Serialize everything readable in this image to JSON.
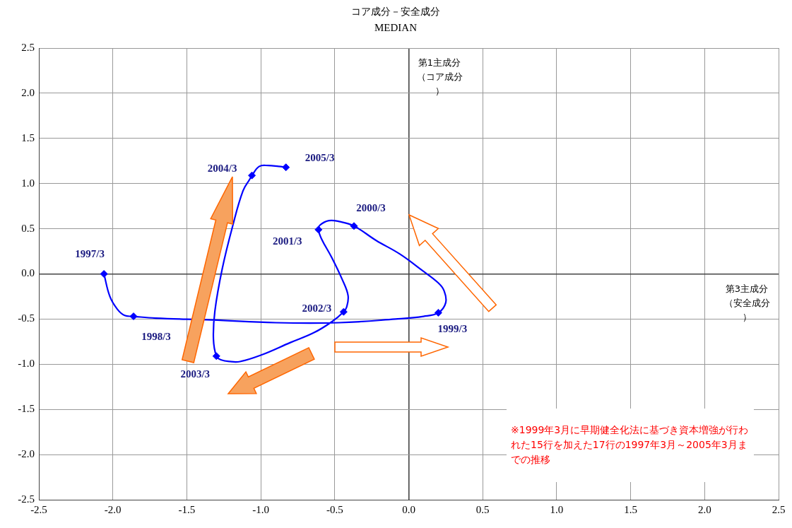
{
  "chart_data": {
    "type": "line",
    "title": "コア成分－安全成分",
    "subtitle": "MEDIAN",
    "xlabel": "第3主成分（安全成分）",
    "ylabel": "第1主成分（コア成分）",
    "xlim": [
      -2.5,
      2.5
    ],
    "ylim": [
      -2.5,
      2.5
    ],
    "xticks": [
      {
        "value": -2.5,
        "label": "-2.5"
      },
      {
        "value": -2,
        "label": "-2.0"
      },
      {
        "value": -1.5,
        "label": "-1.5"
      },
      {
        "value": -1,
        "label": "-1.0"
      },
      {
        "value": -0.5,
        "label": "-0.5"
      },
      {
        "value": 0,
        "label": "0.0"
      },
      {
        "value": 0.5,
        "label": "0.5"
      },
      {
        "value": 1,
        "label": "1.0"
      },
      {
        "value": 1.5,
        "label": "1.5"
      },
      {
        "value": 2,
        "label": "2.0"
      },
      {
        "value": 2.5,
        "label": "2.5"
      }
    ],
    "yticks": [
      {
        "value": -2.5,
        "label": "-2.5"
      },
      {
        "value": -2,
        "label": "-2.0"
      },
      {
        "value": -1.5,
        "label": "-1.5"
      },
      {
        "value": -1,
        "label": "-1.0"
      },
      {
        "value": -0.5,
        "label": "-0.5"
      },
      {
        "value": 0,
        "label": "0.0"
      },
      {
        "value": 0.5,
        "label": "0.5"
      },
      {
        "value": 1,
        "label": "1.0"
      },
      {
        "value": 1.5,
        "label": "1.5"
      },
      {
        "value": 2,
        "label": "2.0"
      },
      {
        "value": 2.5,
        "label": "2.5"
      }
    ],
    "grid": true,
    "legend": false,
    "series": [
      {
        "type": "line",
        "color": "#0000ff",
        "marker": "none",
        "line_style": "solid",
        "x": [
          -2.06,
          -2.02,
          -1.97,
          -1.92,
          -1.86,
          -1.71,
          -1.33,
          -0.9,
          -0.47,
          -0.09,
          0.1,
          0.2,
          0.25,
          0.24,
          0.2,
          0.09,
          -0.06,
          -0.22,
          -0.37,
          -0.47,
          -0.54,
          -0.6,
          -0.61,
          -0.59,
          -0.52,
          -0.45,
          -0.41,
          -0.42,
          -0.44,
          -0.52,
          -0.64,
          -0.8,
          -1.0,
          -1.14,
          -1.21,
          -1.27,
          -1.3,
          -1.32,
          -1.31,
          -1.26,
          -1.19,
          -1.12,
          -1.07,
          -1.06,
          -1.01,
          -0.95,
          -0.88,
          -0.83
        ],
        "values": [
          0.0,
          -0.25,
          -0.39,
          -0.46,
          -0.47,
          -0.49,
          -0.51,
          -0.54,
          -0.54,
          -0.5,
          -0.47,
          -0.43,
          -0.32,
          -0.19,
          -0.1,
          0.04,
          0.22,
          0.37,
          0.53,
          0.58,
          0.59,
          0.54,
          0.49,
          0.39,
          0.18,
          -0.06,
          -0.24,
          -0.37,
          -0.42,
          -0.53,
          -0.65,
          -0.76,
          -0.9,
          -0.97,
          -0.97,
          -0.95,
          -0.91,
          -0.72,
          -0.41,
          0.06,
          0.53,
          0.92,
          1.06,
          1.09,
          1.19,
          1.2,
          1.19,
          1.18
        ]
      },
      {
        "type": "scatter",
        "color": "#0000ff",
        "marker": "diamond",
        "x": [
          -2.06,
          -1.86,
          0.2,
          -0.37,
          -0.61,
          -0.44,
          -1.3,
          -1.06,
          -0.83
        ],
        "values": [
          0.0,
          -0.47,
          -0.43,
          0.53,
          0.49,
          -0.42,
          -0.91,
          1.09,
          1.18
        ]
      }
    ],
    "annotations": [
      {
        "text": "1997/3",
        "x": -2.06,
        "y": 0.0
      },
      {
        "text": "1998/3",
        "x": -1.86,
        "y": -0.47
      },
      {
        "text": "1999/3",
        "x": 0.2,
        "y": -0.43
      },
      {
        "text": "2000/3",
        "x": -0.37,
        "y": 0.53
      },
      {
        "text": "2001/3",
        "x": -0.61,
        "y": 0.49
      },
      {
        "text": "2002/3",
        "x": -0.44,
        "y": -0.42
      },
      {
        "text": "2003/3",
        "x": -1.3,
        "y": -0.91
      },
      {
        "text": "2004/3",
        "x": -1.06,
        "y": 1.09
      },
      {
        "text": "2005/3",
        "x": -0.83,
        "y": 1.18
      },
      "※1999年3月に早期健全化法に基づき資本増強が行われた15行を加えた17行の1997年3月～2005年3月までの推移"
    ]
  }
}
